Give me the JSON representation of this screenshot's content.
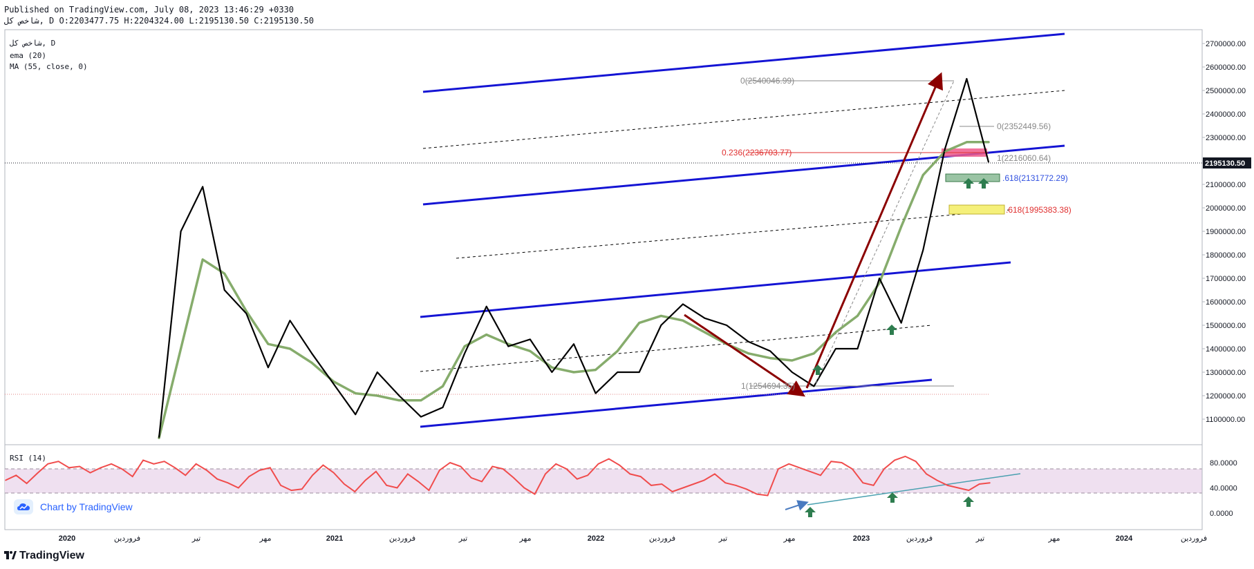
{
  "header": {
    "line1": "Published on TradingView.com, July 08, 2023 13:46:29 +0330",
    "line2": "شاخص کل, D O:2203477.75 H:2204324.00 L:2195130.50 C:2195130.50"
  },
  "legend": {
    "symbol": "شاخص کل, D",
    "indicator1": "ema (20)",
    "indicator2": "MA (55, close, 0)",
    "rsi": "RSI (14)"
  },
  "brand": {
    "chart_by": "Chart by TradingView",
    "footer": "TradingView"
  },
  "colors": {
    "price": "#000000",
    "ma": "#7fa864",
    "channel": "#1414d4",
    "arrow": "#8b0000",
    "rsi": "#f04c4c",
    "rsi_band": "#efe0f0",
    "up_arrow": "#2e7d4f",
    "fib_red": "#e03030",
    "fib_blue": "#3050e0"
  },
  "price_axis": {
    "ticks": [
      "2700000.00",
      "2600000.00",
      "2500000.00",
      "2400000.00",
      "2300000.00",
      "2200000.00",
      "2100000.00",
      "2000000.00",
      "1900000.00",
      "1800000.00",
      "1700000.00",
      "1600000.00",
      "1500000.00",
      "1400000.00",
      "1300000.00",
      "1200000.00",
      "1100000.00"
    ],
    "current_price": "2195130.50"
  },
  "rsi_axis": {
    "ticks": [
      "80.0000",
      "40.0000",
      "0.0000"
    ]
  },
  "time_axis": {
    "ticks": [
      "2020",
      "فروردین",
      "تیر",
      "مهر",
      "2021",
      "فروردین",
      "تیر",
      "مهر",
      "2022",
      "فروردین",
      "تیر",
      "مهر",
      "2023",
      "فروردین",
      "تیر",
      "مهر",
      "2024",
      "فروردین"
    ]
  },
  "fib_labels": {
    "top": "0(2540046.99)",
    "second": "0(2352449.56)",
    "l236": "0.236(2236703.77)",
    "one": "1(2216060.64)",
    "l618a": ".618(2131772.29)",
    "l618b": ".618(1995383.38)",
    "bottom": "1(1254694.35)"
  },
  "chart_data": [
    {
      "type": "line",
      "title": "شاخص کل, D",
      "ylim": [
        1000000,
        2750000
      ],
      "y_ticks": [
        1100000,
        1200000,
        1300000,
        1400000,
        1500000,
        1600000,
        1700000,
        1800000,
        1900000,
        2000000,
        2100000,
        2200000,
        2300000,
        2400000,
        2500000,
        2600000,
        2700000
      ],
      "x_ticks": [
        "2020",
        "فروردین",
        "تیر",
        "مهر",
        "2021",
        "فروردین",
        "تیر",
        "مهر",
        "2022",
        "فروردین",
        "تیر",
        "مهر",
        "2023",
        "فروردین",
        "تیر",
        "مهر",
        "2024",
        "فروردین"
      ],
      "series": [
        {
          "name": "شاخص کل",
          "x": [
            "2020-05",
            "2020-06",
            "2020-07",
            "2020-08",
            "2020-09",
            "2020-10",
            "2020-11",
            "2020-12",
            "2021-01",
            "2021-02",
            "2021-03",
            "2021-04",
            "2021-05",
            "2021-06",
            "2021-07",
            "2021-08",
            "2021-09",
            "2021-10",
            "2021-11",
            "2021-12",
            "2022-01",
            "2022-02",
            "2022-03",
            "2022-04",
            "2022-05",
            "2022-06",
            "2022-07",
            "2022-08",
            "2022-09",
            "2022-10",
            "2022-11",
            "2022-12",
            "2023-01",
            "2023-02",
            "2023-03",
            "2023-04",
            "2023-05",
            "2023-06",
            "2023-07"
          ],
          "values": [
            1020000,
            1900000,
            2090000,
            1650000,
            1550000,
            1320000,
            1520000,
            1380000,
            1250000,
            1120000,
            1300000,
            1200000,
            1110000,
            1150000,
            1380000,
            1580000,
            1410000,
            1440000,
            1300000,
            1420000,
            1210000,
            1300000,
            1300000,
            1500000,
            1590000,
            1530000,
            1500000,
            1430000,
            1390000,
            1300000,
            1240000,
            1400000,
            1400000,
            1700000,
            1510000,
            1820000,
            2250000,
            2550000,
            2195130
          ]
        },
        {
          "name": "MA (55, close, 0)",
          "x": [
            "2020-05",
            "2020-06",
            "2020-07",
            "2020-08",
            "2020-09",
            "2020-10",
            "2020-11",
            "2020-12",
            "2021-01",
            "2021-02",
            "2021-03",
            "2021-04",
            "2021-05",
            "2021-06",
            "2021-07",
            "2021-08",
            "2021-09",
            "2021-10",
            "2021-11",
            "2021-12",
            "2022-01",
            "2022-02",
            "2022-03",
            "2022-04",
            "2022-05",
            "2022-06",
            "2022-07",
            "2022-08",
            "2022-09",
            "2022-10",
            "2022-11",
            "2022-12",
            "2023-01",
            "2023-02",
            "2023-03",
            "2023-04",
            "2023-05",
            "2023-06",
            "2023-07"
          ],
          "values": [
            1020000,
            1400000,
            1780000,
            1720000,
            1560000,
            1420000,
            1400000,
            1340000,
            1260000,
            1210000,
            1200000,
            1180000,
            1180000,
            1240000,
            1410000,
            1460000,
            1420000,
            1390000,
            1320000,
            1300000,
            1310000,
            1390000,
            1510000,
            1540000,
            1520000,
            1470000,
            1420000,
            1380000,
            1360000,
            1350000,
            1380000,
            1470000,
            1540000,
            1680000,
            1920000,
            2140000,
            2240000,
            2280000,
            2280000
          ]
        }
      ]
    },
    {
      "type": "line",
      "title": "RSI (14)",
      "ylim": [
        -10,
        100
      ],
      "y_ticks": [
        0,
        40,
        80
      ],
      "band": [
        30,
        70
      ],
      "series": [
        {
          "name": "RSI (14)",
          "values": [
            52,
            60,
            47,
            63,
            78,
            82,
            72,
            74,
            64,
            72,
            78,
            70,
            58,
            84,
            78,
            82,
            72,
            60,
            78,
            68,
            54,
            48,
            40,
            58,
            68,
            72,
            44,
            36,
            38,
            60,
            76,
            64,
            46,
            34,
            52,
            66,
            44,
            40,
            62,
            50,
            36,
            68,
            80,
            74,
            56,
            50,
            74,
            70,
            56,
            40,
            30,
            62,
            78,
            70,
            54,
            60,
            78,
            86,
            76,
            62,
            58,
            44,
            46,
            34,
            40,
            46,
            52,
            62,
            48,
            44,
            38,
            30,
            28,
            70,
            78,
            72,
            66,
            60,
            82,
            80,
            70,
            48,
            44,
            70,
            84,
            90,
            82,
            62,
            52,
            44,
            40,
            36,
            46,
            48
          ]
        }
      ]
    }
  ]
}
